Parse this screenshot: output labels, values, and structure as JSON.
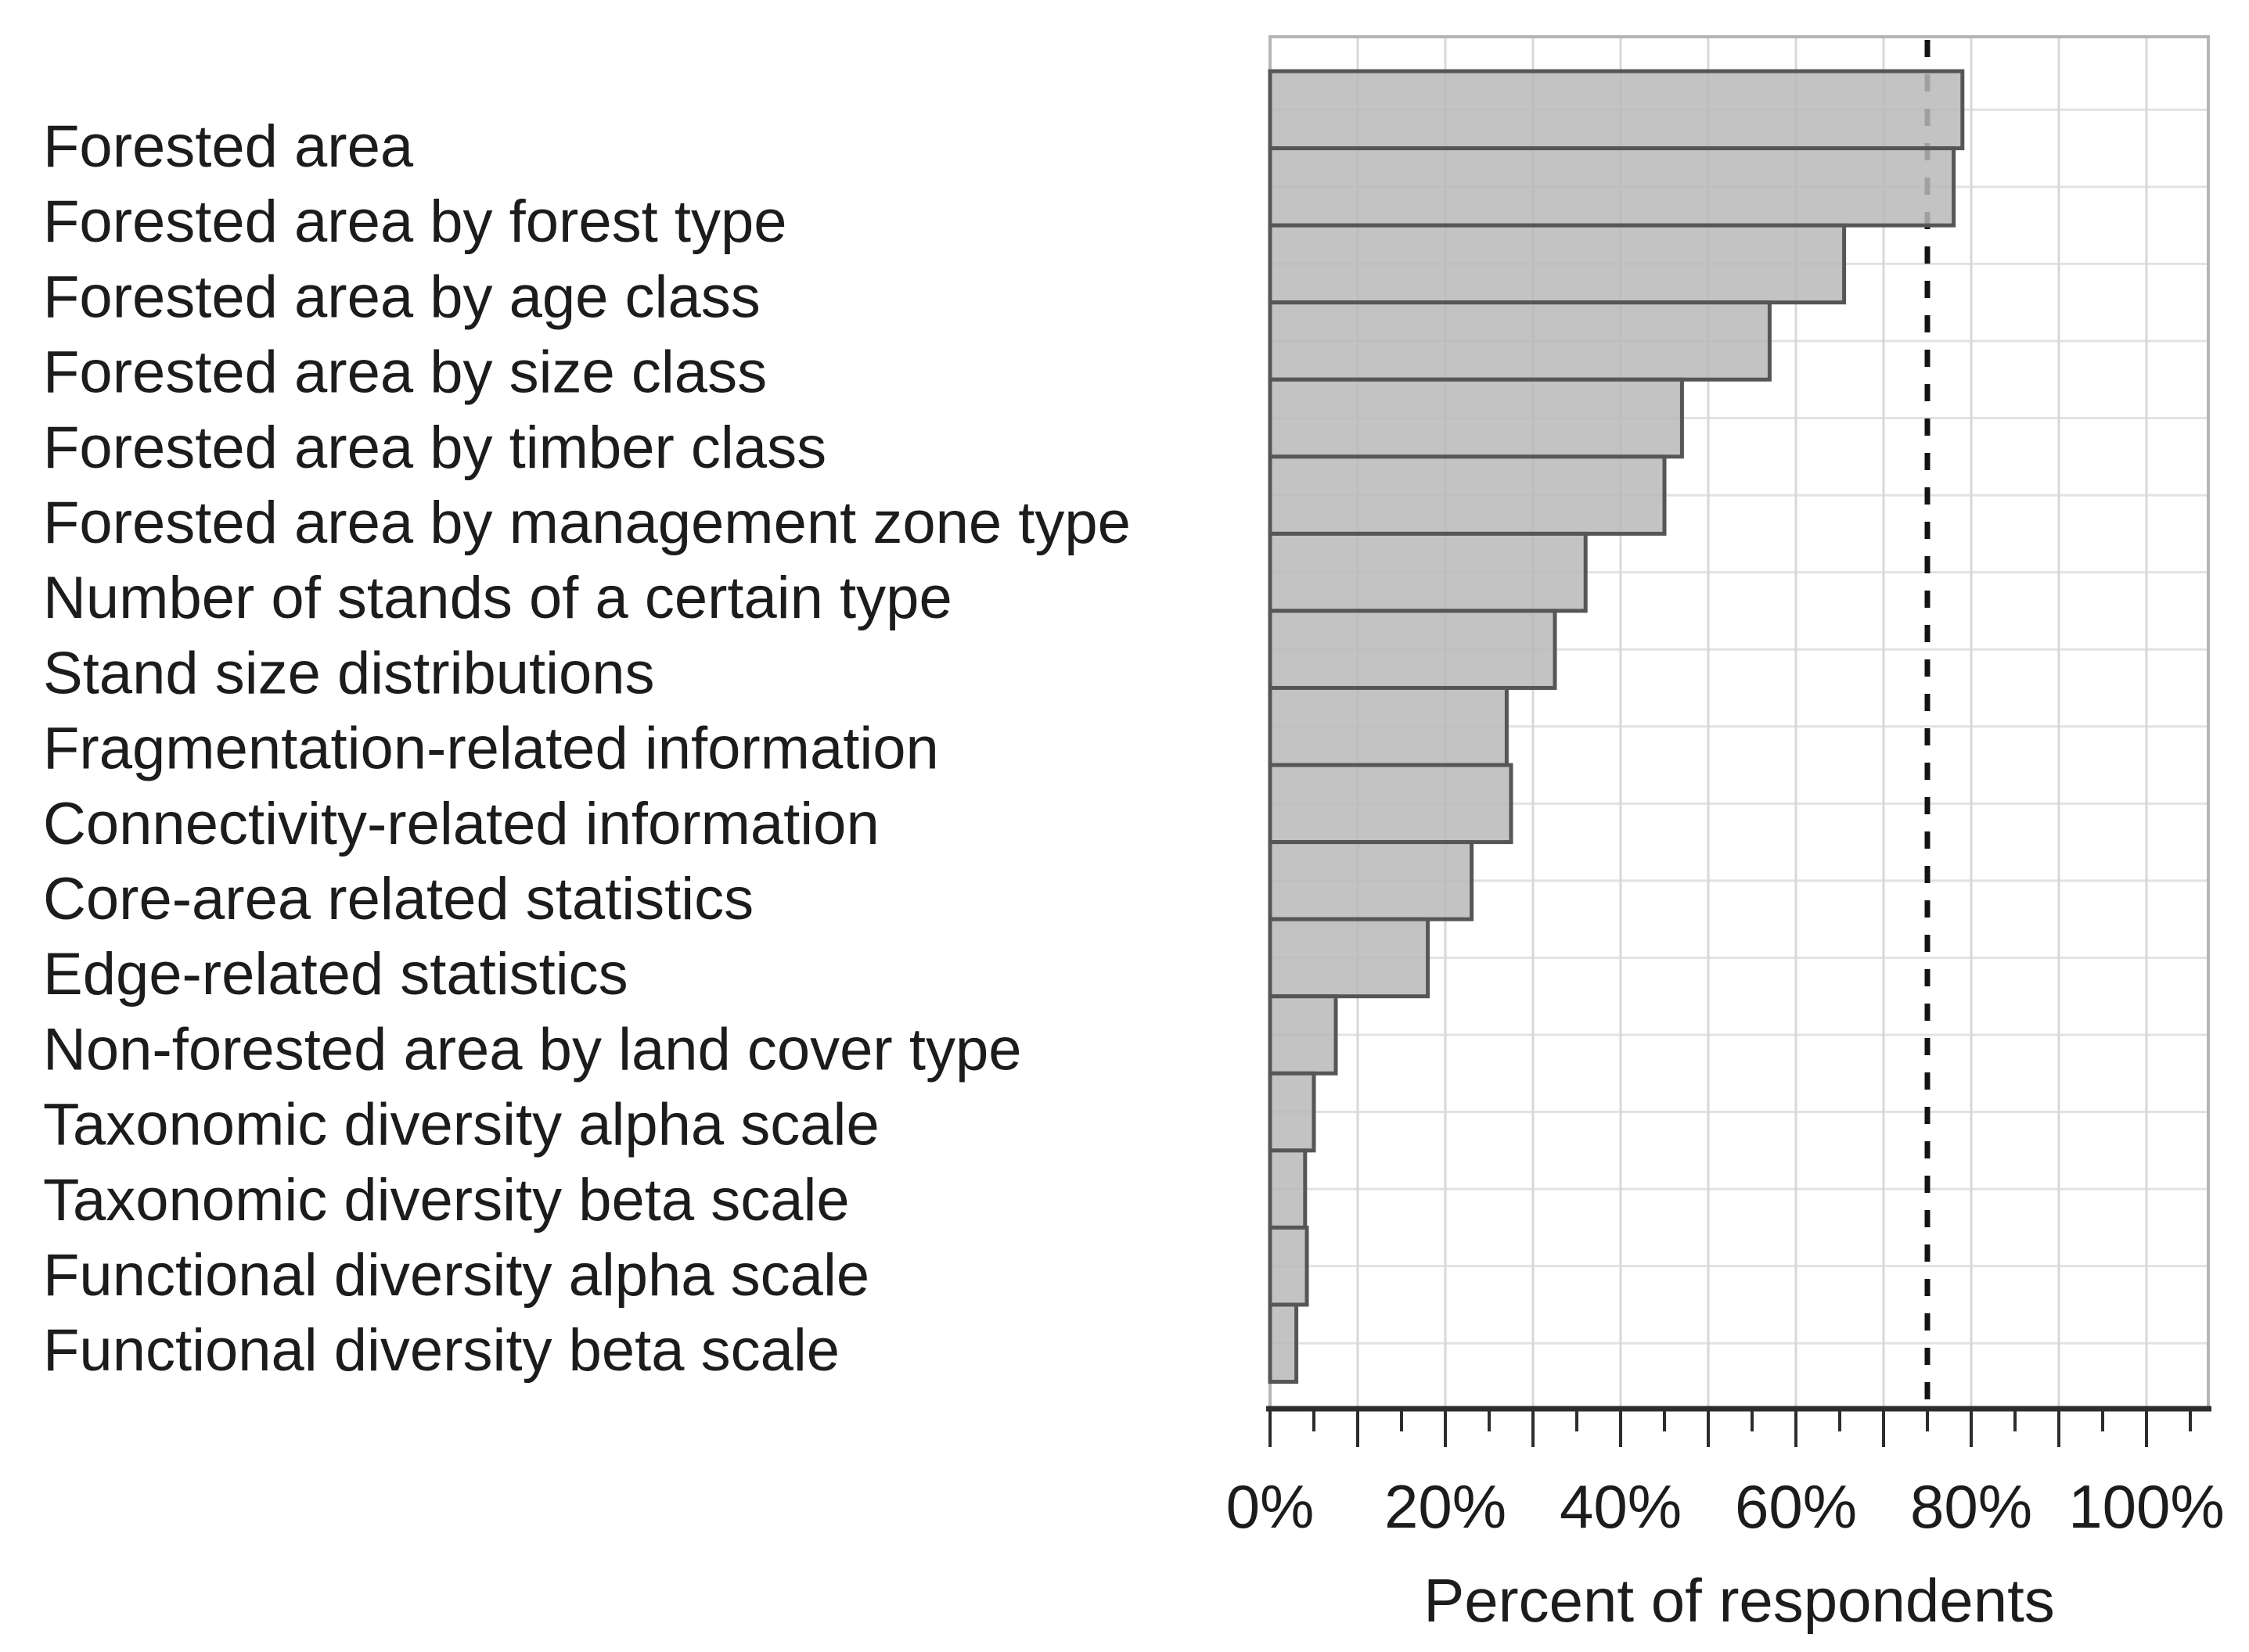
{
  "chart_data": {
    "type": "bar",
    "orientation": "horizontal",
    "title": "",
    "xlabel": "Percent of respondents",
    "categories": [
      "Forested area",
      "Forested area by forest type",
      "Forested area by age class",
      "Forested area by size class",
      "Forested area by timber class",
      "Forested area by management zone type",
      "Number of stands of a certain type",
      "Stand size distributions",
      "Fragmentation-related information",
      "Connectivity-related information",
      "Core-area related statistics",
      "Edge-related statistics",
      "Non-forested area by land cover type",
      "Taxonomic diversity alpha scale",
      "Taxonomic diversity beta scale",
      "Functional diversity alpha scale",
      "Functional diversity beta scale"
    ],
    "values": [
      79,
      78,
      65.5,
      57,
      47,
      45,
      36,
      32.5,
      27,
      27.5,
      23,
      18,
      7.5,
      5,
      4,
      4.2,
      3
    ],
    "value_unit": "%",
    "xlim": [
      0,
      107
    ],
    "x_tick_labels": [
      "0%",
      "20%",
      "40%",
      "60%",
      "80%",
      "100%"
    ],
    "x_tick_label_values": [
      0,
      20,
      40,
      60,
      80,
      100
    ],
    "x_major_ticks": [
      0,
      10,
      20,
      30,
      40,
      50,
      60,
      70,
      80,
      90,
      100
    ],
    "x_minor_ticks": [
      5,
      15,
      25,
      35,
      45,
      55,
      65,
      75,
      85,
      95,
      105
    ],
    "vertical_gridlines": [
      10,
      20,
      30,
      40,
      50,
      60,
      70,
      80,
      90,
      100
    ],
    "horizontal_gridlines": "one-per-category-row",
    "reference_line": {
      "x": 75,
      "style": "dotted"
    },
    "legend_position": "none",
    "colors": {
      "bar_fill": "#c6c6c6",
      "bar_border": "#565656",
      "vertical_gridline": "#d8d8d8",
      "horizontal_gridline": "#e2e2e2",
      "plot_border": "#b5b5b5",
      "axis_line": "#2d2d2d",
      "reference_line": "#141414",
      "text": "#1c1c1c",
      "background": "#ffffff"
    }
  }
}
